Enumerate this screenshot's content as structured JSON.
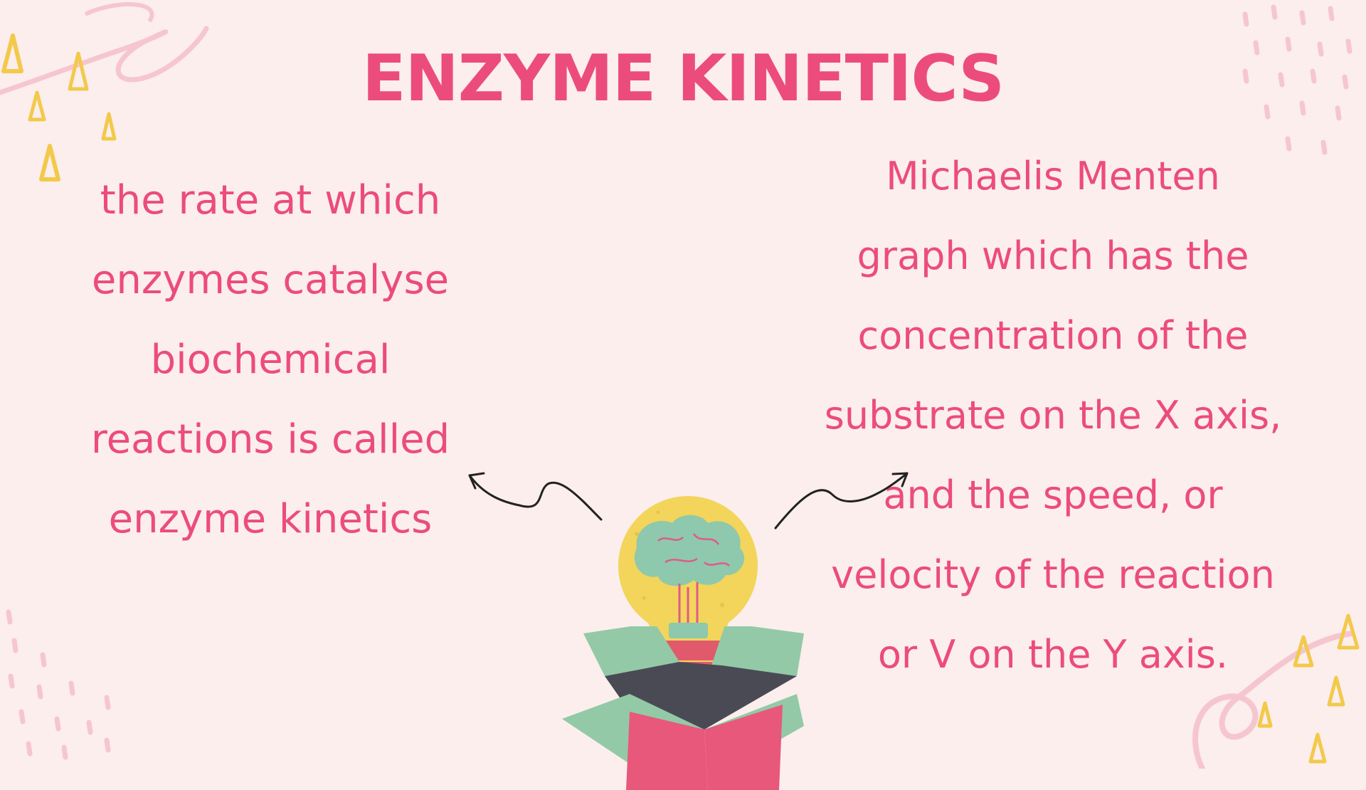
{
  "title": "ENZYME KINETICS",
  "left_text": {
    "lines": [
      "the rate at which",
      "enzymes catalyse",
      "biochemical",
      "reactions is called",
      "enzyme kinetics"
    ]
  },
  "right_text": {
    "lines": [
      "Michaelis Menten",
      "graph which has the",
      "concentration of the",
      "substrate on the X axis,",
      "and the speed, or",
      "velocity of the reaction",
      "or V on the Y axis."
    ]
  },
  "colors": {
    "background": "#fbeeed",
    "accent_pink": "#ec4c7c",
    "bulb_yellow": "#f2d55a",
    "brain_green": "#8ec8ad",
    "box_green": "#93c9a7",
    "box_dark": "#4a4a55"
  },
  "icons": [
    "lightbulb-brain-icon",
    "open-box-icon",
    "arrow-left-icon",
    "arrow-right-icon"
  ]
}
